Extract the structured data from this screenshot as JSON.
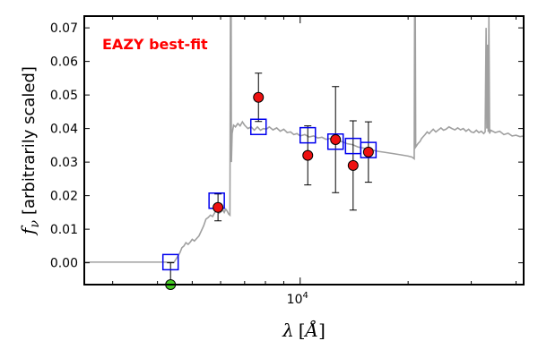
{
  "chart_data": {
    "type": "scatter",
    "x_scale": "log",
    "xlim": [
      2500,
      42000
    ],
    "ylim": [
      -0.0065,
      0.0735
    ],
    "ylabel": "f_ν [arbitrarily scaled]",
    "xlabel": "λ [Å]",
    "x_tick_labels": [
      {
        "value": 10000,
        "label": "10^4"
      }
    ],
    "y_ticks": [
      0.0,
      0.01,
      0.02,
      0.03,
      0.04,
      0.05,
      0.06,
      0.07
    ],
    "y_tick_labels": [
      "0.00",
      "0.01",
      "0.02",
      "0.03",
      "0.04",
      "0.05",
      "0.06",
      "0.07"
    ],
    "annotation": {
      "text": "EAZY best-fit",
      "color": "#ff0000",
      "position": "top-left"
    },
    "colors": {
      "observed": "#ee1111",
      "model": "#0000ee",
      "upper_limit": "#44cc22",
      "template": "#a0a0a0"
    },
    "series": [
      {
        "role": "observed",
        "marker": "circle",
        "points": [
          {
            "x": 5900,
            "y": 0.0165,
            "yerr": 0.004
          },
          {
            "x": 7650,
            "y": 0.0493,
            "yerr": 0.0072
          },
          {
            "x": 10500,
            "y": 0.032,
            "yerr": 0.0088
          },
          {
            "x": 12550,
            "y": 0.0367,
            "yerr": 0.0158
          },
          {
            "x": 14050,
            "y": 0.029,
            "yerr": 0.0133
          },
          {
            "x": 15500,
            "y": 0.033,
            "yerr": 0.009
          }
        ]
      },
      {
        "role": "model",
        "marker": "square",
        "points": [
          {
            "x": 4350,
            "y": 0.0002
          },
          {
            "x": 5850,
            "y": 0.0185
          },
          {
            "x": 7650,
            "y": 0.0405
          },
          {
            "x": 10500,
            "y": 0.038
          },
          {
            "x": 12550,
            "y": 0.0361
          },
          {
            "x": 14050,
            "y": 0.0348
          },
          {
            "x": 15500,
            "y": 0.0336
          }
        ]
      },
      {
        "role": "upper_limit",
        "marker": "circle",
        "points": [
          {
            "x": 4350,
            "y": -0.0065,
            "yerr_up": 0.0065
          }
        ]
      },
      {
        "role": "template",
        "style": "line",
        "points": [
          [
            2500,
            0.0002
          ],
          [
            4450,
            0.0002
          ],
          [
            4500,
            0.001
          ],
          [
            4560,
            0.002
          ],
          [
            4620,
            0.003
          ],
          [
            4680,
            0.0045
          ],
          [
            4740,
            0.005
          ],
          [
            4800,
            0.006
          ],
          [
            4870,
            0.0055
          ],
          [
            4940,
            0.0062
          ],
          [
            5000,
            0.007
          ],
          [
            5070,
            0.0065
          ],
          [
            5140,
            0.0072
          ],
          [
            5220,
            0.008
          ],
          [
            5300,
            0.0095
          ],
          [
            5380,
            0.011
          ],
          [
            5460,
            0.013
          ],
          [
            5540,
            0.0135
          ],
          [
            5620,
            0.0142
          ],
          [
            5700,
            0.0138
          ],
          [
            5780,
            0.015
          ],
          [
            5860,
            0.0158
          ],
          [
            5940,
            0.0148
          ],
          [
            6020,
            0.0152
          ],
          [
            6080,
            0.0158
          ],
          [
            6140,
            0.015
          ],
          [
            6200,
            0.016
          ],
          [
            6250,
            0.0155
          ],
          [
            6320,
            0.0145
          ],
          [
            6370,
            0.0142
          ],
          [
            6390,
            0.0735
          ],
          [
            6420,
            0.0735
          ],
          [
            6430,
            0.03
          ],
          [
            6460,
            0.0385
          ],
          [
            6520,
            0.041
          ],
          [
            6600,
            0.0405
          ],
          [
            6700,
            0.0415
          ],
          [
            6800,
            0.0408
          ],
          [
            6900,
            0.042
          ],
          [
            7000,
            0.041
          ],
          [
            7150,
            0.04
          ],
          [
            7300,
            0.0405
          ],
          [
            7450,
            0.0395
          ],
          [
            7600,
            0.0405
          ],
          [
            7750,
            0.0395
          ],
          [
            7900,
            0.04
          ],
          [
            8050,
            0.0398
          ],
          [
            8200,
            0.0405
          ],
          [
            8400,
            0.0396
          ],
          [
            8600,
            0.0402
          ],
          [
            8800,
            0.0392
          ],
          [
            9000,
            0.0398
          ],
          [
            9200,
            0.0388
          ],
          [
            9400,
            0.039
          ],
          [
            9600,
            0.0382
          ],
          [
            9800,
            0.0385
          ],
          [
            10000,
            0.0378
          ],
          [
            10300,
            0.0382
          ],
          [
            10600,
            0.0375
          ],
          [
            10900,
            0.0378
          ],
          [
            11200,
            0.0372
          ],
          [
            11500,
            0.0374
          ],
          [
            11800,
            0.0368
          ],
          [
            12100,
            0.037
          ],
          [
            12500,
            0.0365
          ],
          [
            13000,
            0.0362
          ],
          [
            13500,
            0.0355
          ],
          [
            14000,
            0.0352
          ],
          [
            14500,
            0.0345
          ],
          [
            15000,
            0.0342
          ],
          [
            15500,
            0.0338
          ],
          [
            16000,
            0.0335
          ],
          [
            16500,
            0.0332
          ],
          [
            17000,
            0.033
          ],
          [
            17500,
            0.0328
          ],
          [
            18000,
            0.0326
          ],
          [
            18500,
            0.0324
          ],
          [
            19000,
            0.0322
          ],
          [
            19500,
            0.032
          ],
          [
            20000,
            0.0318
          ],
          [
            20500,
            0.0315
          ],
          [
            20800,
            0.031
          ],
          [
            20850,
            0.0735
          ],
          [
            20950,
            0.0735
          ],
          [
            21000,
            0.0345
          ],
          [
            21300,
            0.0355
          ],
          [
            21600,
            0.0362
          ],
          [
            21800,
            0.037
          ],
          [
            22000,
            0.0375
          ],
          [
            22300,
            0.0382
          ],
          [
            22600,
            0.039
          ],
          [
            22900,
            0.0385
          ],
          [
            23200,
            0.0392
          ],
          [
            23500,
            0.0398
          ],
          [
            23900,
            0.039
          ],
          [
            24300,
            0.0396
          ],
          [
            24700,
            0.0402
          ],
          [
            25100,
            0.0395
          ],
          [
            25500,
            0.0398
          ],
          [
            26000,
            0.0405
          ],
          [
            26500,
            0.04
          ],
          [
            27000,
            0.0396
          ],
          [
            27500,
            0.0402
          ],
          [
            28000,
            0.0396
          ],
          [
            28500,
            0.04
          ],
          [
            29000,
            0.0392
          ],
          [
            29500,
            0.0398
          ],
          [
            30000,
            0.039
          ],
          [
            30500,
            0.0388
          ],
          [
            31000,
            0.0395
          ],
          [
            31500,
            0.0388
          ],
          [
            32000,
            0.0392
          ],
          [
            32500,
            0.0385
          ],
          [
            32800,
            0.039
          ],
          [
            33000,
            0.07
          ],
          [
            33150,
            0.04
          ],
          [
            33300,
            0.065
          ],
          [
            33450,
            0.039
          ],
          [
            33600,
            0.0735
          ],
          [
            33750,
            0.0385
          ],
          [
            34000,
            0.0395
          ],
          [
            35000,
            0.0388
          ],
          [
            36000,
            0.0392
          ],
          [
            37000,
            0.0382
          ],
          [
            38000,
            0.0386
          ],
          [
            39000,
            0.0378
          ],
          [
            40000,
            0.038
          ],
          [
            41000,
            0.0376
          ],
          [
            42000,
            0.0378
          ]
        ]
      }
    ]
  }
}
